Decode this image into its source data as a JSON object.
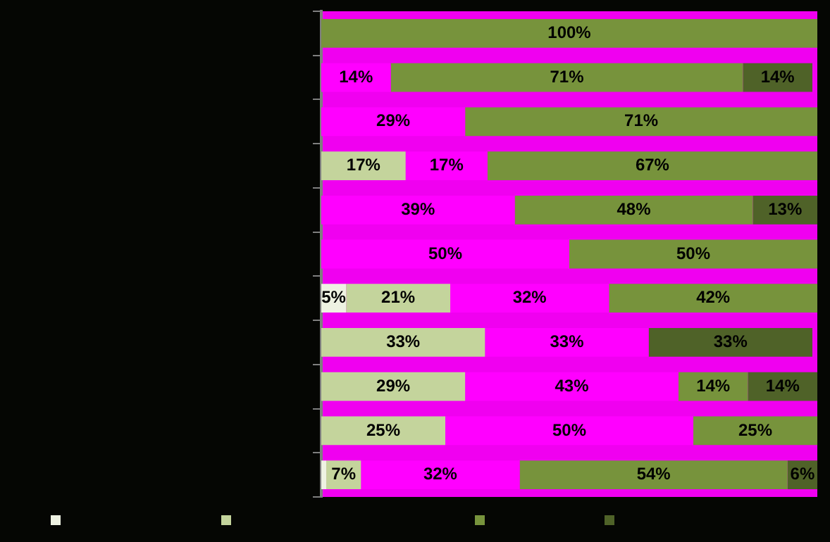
{
  "chart_data": {
    "type": "bar",
    "orientation": "horizontal",
    "stacked": true,
    "categories": [
      null,
      null,
      null,
      null,
      null,
      null,
      null,
      null,
      null,
      null,
      null
    ],
    "series": [
      {
        "color": "#eef2e2",
        "values": [
          null,
          null,
          null,
          null,
          null,
          null,
          5,
          null,
          null,
          null,
          1
        ],
        "value_labels": [
          null,
          null,
          null,
          null,
          null,
          null,
          "5%",
          null,
          null,
          null,
          null
        ]
      },
      {
        "color": "#c4d49c",
        "values": [
          null,
          null,
          null,
          17,
          null,
          null,
          21,
          33,
          29,
          25,
          7
        ],
        "value_labels": [
          null,
          null,
          null,
          "17%",
          null,
          null,
          "21%",
          "33%",
          "29%",
          "25%",
          "7%"
        ]
      },
      {
        "color": "#ff00ff",
        "values": [
          null,
          14,
          29,
          16.5,
          39,
          50,
          32,
          33,
          43,
          50,
          32
        ],
        "value_labels": [
          null,
          "14%",
          "29%",
          "17%",
          "39%",
          "50%",
          "32%",
          "33%",
          "43%",
          "50%",
          "32%"
        ]
      },
      {
        "color": "#77933c",
        "values": [
          100,
          71,
          71,
          66.5,
          48,
          50,
          42,
          null,
          14,
          25,
          54
        ],
        "value_labels": [
          "100%",
          "71%",
          "71%",
          "67%",
          "48%",
          "50%",
          "42%",
          null,
          "14%",
          "25%",
          "54%"
        ]
      },
      {
        "color": "#4f6228",
        "values": [
          null,
          14,
          null,
          null,
          13,
          null,
          null,
          33,
          14,
          null,
          6
        ],
        "value_labels": [
          null,
          "14%",
          null,
          null,
          "13%",
          null,
          null,
          "33%",
          "14%",
          null,
          "6%"
        ]
      }
    ],
    "xlim": [
      0,
      100
    ],
    "tick_labels": false
  }
}
